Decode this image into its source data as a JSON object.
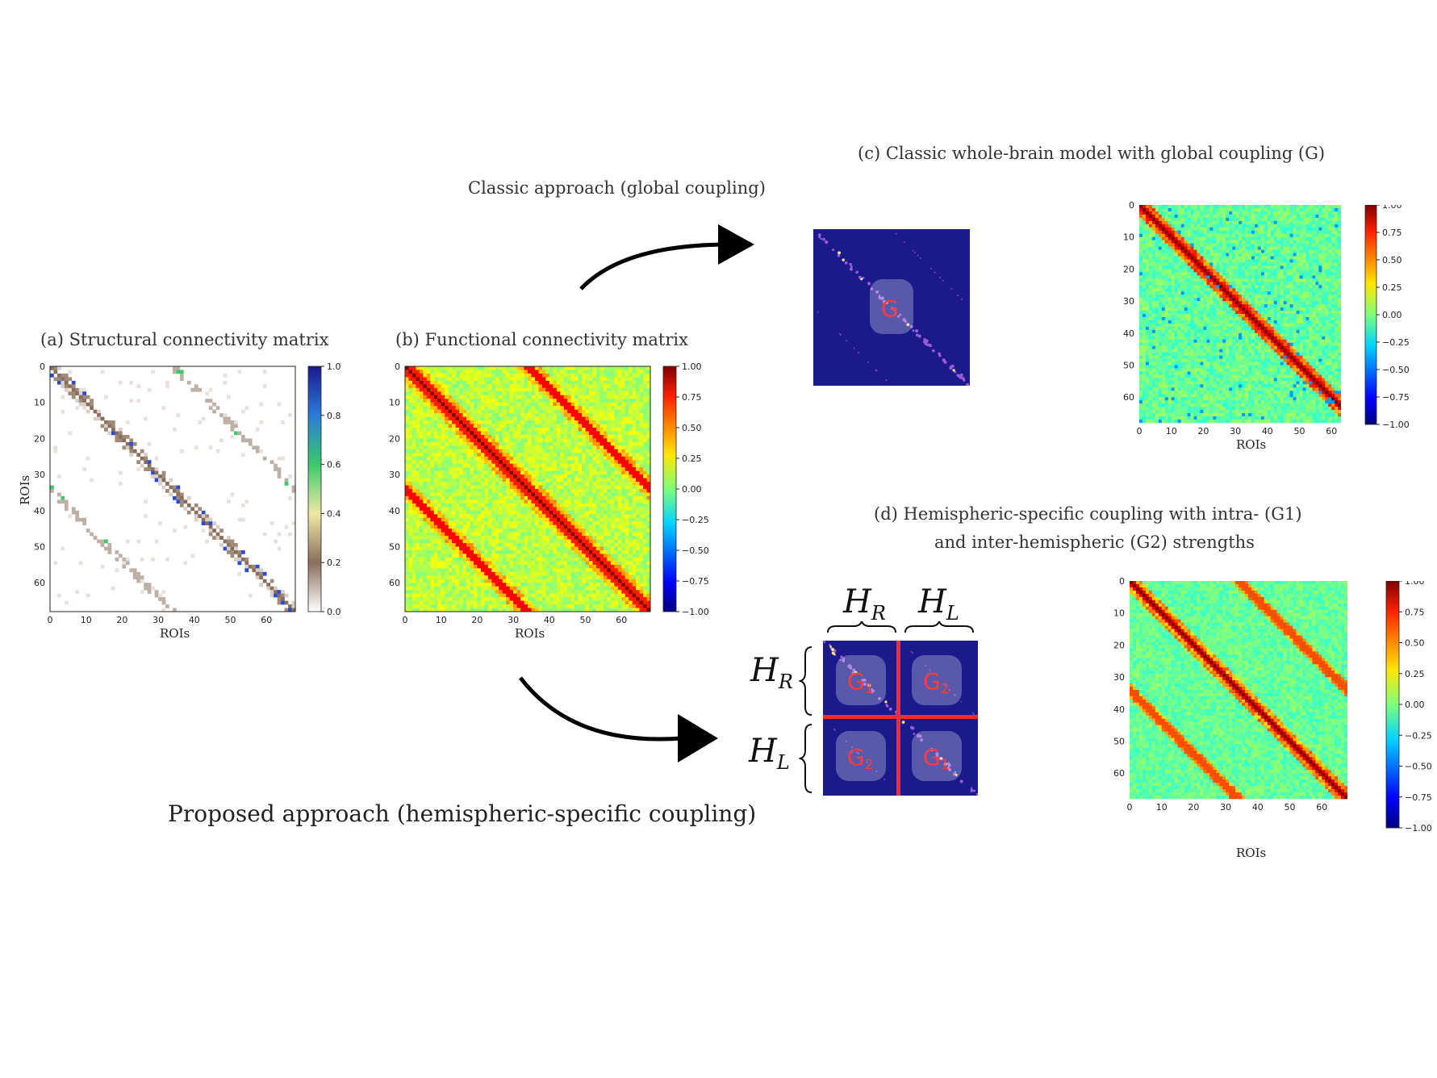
{
  "captions": {
    "a": "(a) Structural connectivity matrix",
    "b": "(b) Functional connectivity matrix",
    "c": "(c) Classic whole-brain model with global coupling (G)",
    "d_line1": "(d) Hemispheric-specific coupling with intra- (G1)",
    "d_line2": "and inter-hemispheric (G2) strengths",
    "classic": "Classic approach (global coupling)",
    "proposed": "Proposed approach (hemispheric-specific coupling)"
  },
  "axes": {
    "xlabel": "ROIs",
    "ylabel": "ROIs",
    "ticks": [
      "0",
      "10",
      "20",
      "30",
      "40",
      "50",
      "60"
    ]
  },
  "colorbars": {
    "sc_ticks": [
      "1.0",
      "0.8",
      "0.6",
      "0.4",
      "0.2",
      "0.0"
    ],
    "fc_ticks": [
      "1.00",
      "0.75",
      "0.50",
      "0.25",
      "0.00",
      "−0.25",
      "−0.50",
      "−0.75",
      "−1.00"
    ]
  },
  "coupling_labels": {
    "global": "G",
    "intra": "G",
    "intra_sub": "1",
    "inter": "G",
    "inter_sub": "2"
  },
  "hemisphere_labels": {
    "right": "H",
    "right_sub": "R",
    "left": "H",
    "left_sub": "L"
  },
  "colors": {
    "coupling_text": "#ff3b3b",
    "divider": "#ff2a2a",
    "sc_background": "#1a1a8c"
  }
}
